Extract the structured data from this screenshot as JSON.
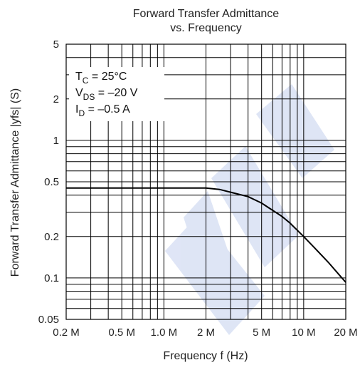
{
  "chart_data": {
    "type": "line",
    "title": "Forward Transfer Admittance",
    "subtitle": "vs. Frequency",
    "xlabel": "Frequency  f  (Hz)",
    "ylabel": "Forward Transfer Admittance  |yfs|  (S)",
    "x_scale": "log",
    "y_scale": "log",
    "xlim": [
      200000,
      20000000
    ],
    "ylim": [
      0.05,
      5
    ],
    "grid": true,
    "x_ticks": [
      {
        "value": 200000,
        "label": "0.2 M"
      },
      {
        "value": 500000,
        "label": "0.5 M"
      },
      {
        "value": 1000000,
        "label": "1.0 M"
      },
      {
        "value": 2000000,
        "label": "2 M"
      },
      {
        "value": 5000000,
        "label": "5 M"
      },
      {
        "value": 10000000,
        "label": "10 M"
      },
      {
        "value": 20000000,
        "label": "20 M"
      }
    ],
    "y_ticks": [
      {
        "value": 5,
        "label": "5"
      },
      {
        "value": 2,
        "label": "2"
      },
      {
        "value": 1,
        "label": "1"
      },
      {
        "value": 0.5,
        "label": "0.5"
      },
      {
        "value": 0.2,
        "label": "0.2"
      },
      {
        "value": 0.1,
        "label": "0.1"
      },
      {
        "value": 0.05,
        "label": "0.05"
      }
    ],
    "conditions": [
      {
        "main": "T",
        "sub": "C",
        "rest": " = 25°C"
      },
      {
        "main": "V",
        "sub": "DS",
        "rest": " = –20 V"
      },
      {
        "main": "I",
        "sub": "D",
        "rest": " = –0.5 A"
      }
    ],
    "series": [
      {
        "x": [
          200000,
          500000,
          1000000,
          2000000,
          2500000,
          3000000,
          4000000,
          5000000,
          6000000,
          7000000,
          8000000,
          10000000,
          12000000,
          15000000,
          18000000,
          20000000
        ],
        "y": [
          0.45,
          0.45,
          0.45,
          0.45,
          0.44,
          0.42,
          0.39,
          0.35,
          0.31,
          0.28,
          0.25,
          0.2,
          0.165,
          0.13,
          0.105,
          0.093
        ]
      }
    ],
    "colors": {
      "line": "#000000",
      "grid": "#000000",
      "watermark": "#c9d4f0"
    }
  }
}
